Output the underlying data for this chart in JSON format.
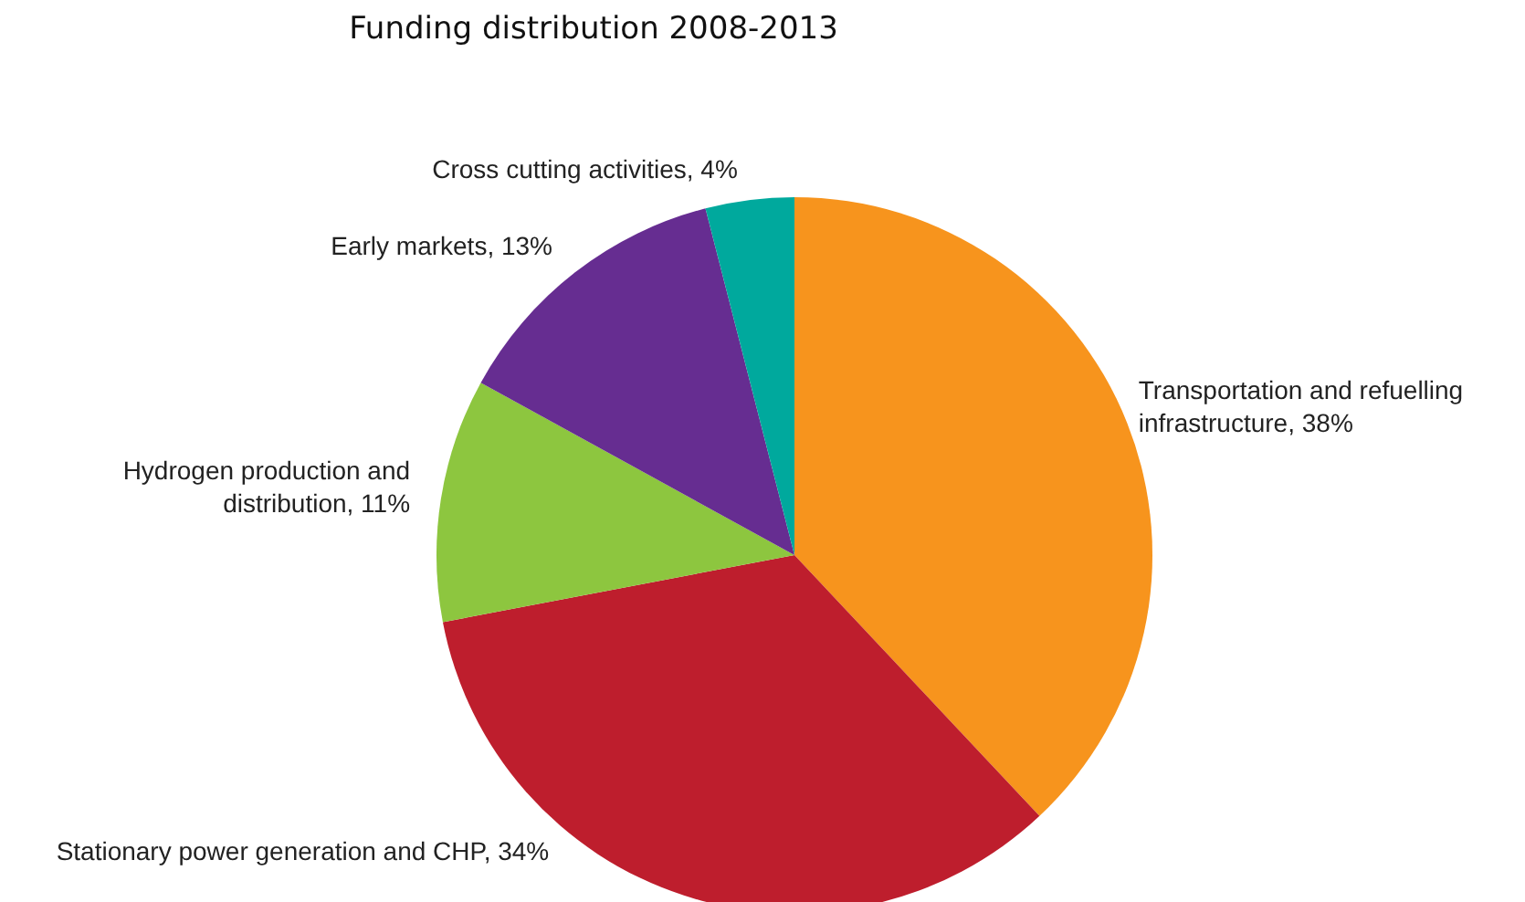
{
  "chart_data": {
    "type": "pie",
    "title": "Funding distribution 2008-2013",
    "categories": [
      "Transportation and refuelling infrastructure",
      "Stationary power generation and CHP",
      "Hydrogen production and distribution",
      "Early markets",
      "Cross cutting activities"
    ],
    "values": [
      38,
      34,
      11,
      13,
      4
    ],
    "value_labels": [
      "38%",
      "34%",
      "11%",
      "13%",
      "4%"
    ],
    "colors": [
      "#f7941d",
      "#be1e2d",
      "#8dc63f",
      "#662d91",
      "#00a99d"
    ]
  }
}
